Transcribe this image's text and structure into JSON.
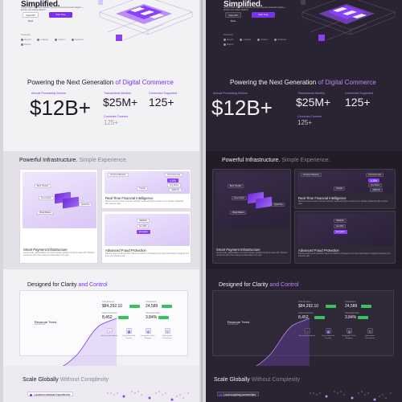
{
  "themes": [
    "light",
    "dark"
  ],
  "hero": {
    "title": "Simplified.",
    "subtitle": "Accept cards, automate payouts, and get real-time financial insights — all from one unified platform.",
    "docs_label": "View API Docs",
    "start_label": "Start Free",
    "powered_by": "Trusted by",
    "logos": [
      "Mayroll",
      "Ledgerly",
      "Stratum",
      "Railstone",
      "Bolsum"
    ]
  },
  "stats": {
    "title_a": "Powering the Next Generation ",
    "title_b": "of Digital Commerce",
    "annual_label": "Annual Processing Volume",
    "annual_value": "$12B+",
    "monthly_label": "Transactions Monthly",
    "monthly_value": "$25M+",
    "currencies_label": "Currencies Supported",
    "currencies_value": "125+",
    "countries_label": "Countries Covered",
    "countries_value": "125+"
  },
  "features": {
    "title_a": "Powerful Infrastructure. ",
    "title_b": "Simple Experience.",
    "smart_title": "Smart Payment Infrastructure",
    "smart_desc": "Accept cards, digital wallets, and bank transfers globally through a single API. Optimize conversion with smart routing and automated retry logic.",
    "smart_chips": [
      "Bank Transfer",
      "Apple Pay",
      "Digital Wallets",
      "Amex Cards"
    ],
    "rt_title": "Real-Time Financial Intelligence",
    "rt_desc": "Monitor revenue trends, customer behavior, and performance metrics in one intuitive dashboard with real-time data.",
    "rt_chips": [
      "Customer Behavior",
      "Conversion rate",
      "4.8%",
      "Live Flows",
      "+$260.00",
      "Transfer"
    ],
    "fraud_title": "Advanced Fraud Protection",
    "fraud_desc": "Machine-learning risk detection trained on millions of transactions to block fraud before it happens and keep your business safe.",
    "fraud_chips": [
      "Validation",
      "Geo Risk",
      "Encryption"
    ]
  },
  "clarity": {
    "title_a": "Designed for Clarity ",
    "title_b": "and Control",
    "revenue_title": "Revenue Trend",
    "revenue_sub": "Last 30 Days",
    "metrics": [
      {
        "label": "Total Revenue",
        "value": "$84,292.10"
      },
      {
        "label": "Transactions",
        "value": "24,589"
      },
      {
        "label": "Active Customers",
        "value": "8,452"
      },
      {
        "label": "Conversion Rate",
        "value": "3.84%"
      }
    ],
    "tiles": [
      "Revenue Breakdown",
      "Cohort Retention Tracking",
      "Geographic Sales Mapping",
      "Subscription Performance"
    ]
  },
  "scale": {
    "title_a": "Scale Globally ",
    "title_b": "Without Complexity",
    "pill_light": "Localized checkout experiences",
    "pill_dark": "Local acquiring partnerships"
  },
  "colors": {
    "accent": "#7b2ff2",
    "success": "#37c25f",
    "dark_bg": "#2a2331",
    "light_bg": "#f2f1f4"
  }
}
